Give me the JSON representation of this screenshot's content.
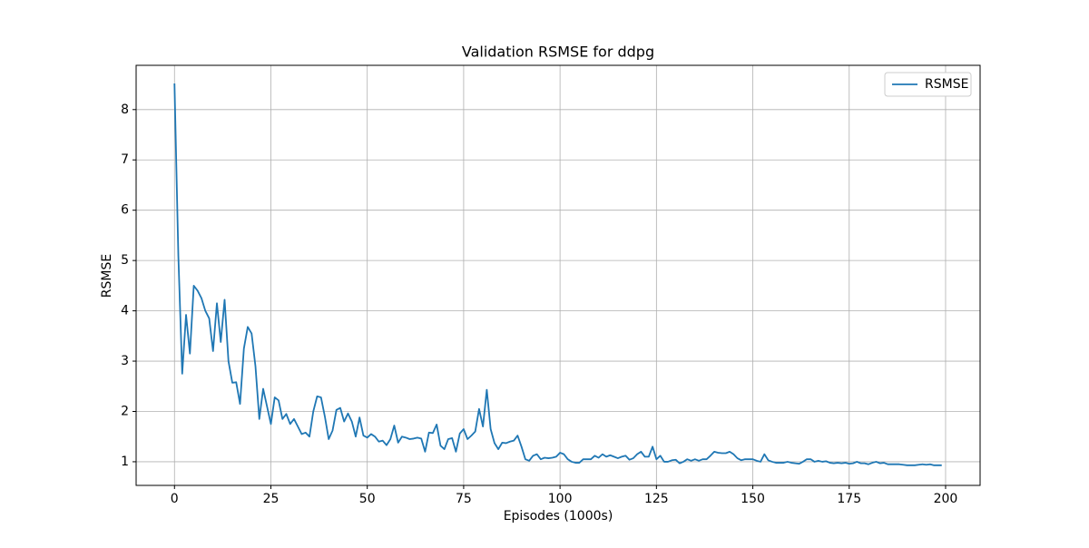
{
  "chart_data": {
    "type": "line",
    "title": "Validation RSMSE for ddpg",
    "xlabel": "Episodes (1000s)",
    "ylabel": "RSMSE",
    "x": [
      0,
      1,
      2,
      3,
      4,
      5,
      6,
      7,
      8,
      9,
      10,
      11,
      12,
      13,
      14,
      15,
      16,
      17,
      18,
      19,
      20,
      21,
      22,
      23,
      24,
      25,
      26,
      27,
      28,
      29,
      30,
      31,
      32,
      33,
      34,
      35,
      36,
      37,
      38,
      39,
      40,
      41,
      42,
      43,
      44,
      45,
      46,
      47,
      48,
      49,
      50,
      51,
      52,
      53,
      54,
      55,
      56,
      57,
      58,
      59,
      60,
      61,
      62,
      63,
      64,
      65,
      66,
      67,
      68,
      69,
      70,
      71,
      72,
      73,
      74,
      75,
      76,
      77,
      78,
      79,
      80,
      81,
      82,
      83,
      84,
      85,
      86,
      87,
      88,
      89,
      90,
      91,
      92,
      93,
      94,
      95,
      96,
      97,
      98,
      99,
      100,
      101,
      102,
      103,
      104,
      105,
      106,
      107,
      108,
      109,
      110,
      111,
      112,
      113,
      114,
      115,
      116,
      117,
      118,
      119,
      120,
      121,
      122,
      123,
      124,
      125,
      126,
      127,
      128,
      129,
      130,
      131,
      132,
      133,
      134,
      135,
      136,
      137,
      138,
      139,
      140,
      141,
      142,
      143,
      144,
      145,
      146,
      147,
      148,
      149,
      150,
      151,
      152,
      153,
      154,
      155,
      156,
      157,
      158,
      159,
      160,
      161,
      162,
      163,
      164,
      165,
      166,
      167,
      168,
      169,
      170,
      171,
      172,
      173,
      174,
      175,
      176,
      177,
      178,
      179,
      180,
      181,
      182,
      183,
      184,
      185,
      186,
      187,
      188,
      189,
      190,
      191,
      192,
      193,
      194,
      195,
      196,
      197,
      198,
      199
    ],
    "series": [
      {
        "name": "RSMSE",
        "color": "#1f77b4",
        "values": [
          8.52,
          5.1,
          2.75,
          3.92,
          3.15,
          4.5,
          4.4,
          4.25,
          4.0,
          3.85,
          3.2,
          4.15,
          3.38,
          4.22,
          3.0,
          2.57,
          2.58,
          2.15,
          3.25,
          3.68,
          3.55,
          2.9,
          1.85,
          2.45,
          2.1,
          1.75,
          2.28,
          2.22,
          1.85,
          1.95,
          1.75,
          1.85,
          1.7,
          1.55,
          1.58,
          1.5,
          2.0,
          2.3,
          2.28,
          1.9,
          1.45,
          1.62,
          2.03,
          2.07,
          1.8,
          1.96,
          1.8,
          1.5,
          1.88,
          1.52,
          1.48,
          1.55,
          1.5,
          1.4,
          1.42,
          1.33,
          1.45,
          1.72,
          1.38,
          1.5,
          1.48,
          1.45,
          1.46,
          1.48,
          1.46,
          1.2,
          1.58,
          1.57,
          1.74,
          1.32,
          1.25,
          1.45,
          1.47,
          1.2,
          1.56,
          1.65,
          1.45,
          1.52,
          1.6,
          2.05,
          1.7,
          2.43,
          1.65,
          1.37,
          1.25,
          1.38,
          1.37,
          1.4,
          1.42,
          1.52,
          1.3,
          1.05,
          1.02,
          1.12,
          1.15,
          1.05,
          1.08,
          1.07,
          1.08,
          1.1,
          1.18,
          1.15,
          1.05,
          1.0,
          0.98,
          0.98,
          1.05,
          1.05,
          1.05,
          1.12,
          1.08,
          1.15,
          1.1,
          1.13,
          1.1,
          1.07,
          1.1,
          1.12,
          1.04,
          1.07,
          1.15,
          1.2,
          1.1,
          1.1,
          1.3,
          1.05,
          1.12,
          1.0,
          1.0,
          1.03,
          1.04,
          0.97,
          1.0,
          1.05,
          1.02,
          1.05,
          1.02,
          1.05,
          1.05,
          1.12,
          1.2,
          1.18,
          1.17,
          1.17,
          1.2,
          1.15,
          1.07,
          1.03,
          1.05,
          1.05,
          1.05,
          1.02,
          1.0,
          1.15,
          1.03,
          1.0,
          0.98,
          0.98,
          0.98,
          1.0,
          0.98,
          0.97,
          0.96,
          1.0,
          1.05,
          1.05,
          1.0,
          1.02,
          1.0,
          1.01,
          0.98,
          0.97,
          0.98,
          0.97,
          0.98,
          0.96,
          0.97,
          1.0,
          0.97,
          0.97,
          0.95,
          0.98,
          1.0,
          0.97,
          0.98,
          0.95,
          0.95,
          0.95,
          0.95,
          0.94,
          0.93,
          0.93,
          0.93,
          0.94,
          0.95,
          0.94,
          0.95,
          0.93,
          0.93,
          0.93
        ]
      }
    ],
    "xlim": [
      -9.95,
      208.95
    ],
    "xticks": [
      0,
      25,
      50,
      75,
      100,
      125,
      150,
      175,
      200
    ],
    "ylim": [
      0.53,
      8.88
    ],
    "yticks": [
      1,
      2,
      3,
      4,
      5,
      6,
      7,
      8
    ],
    "grid": true,
    "legend": "upper right"
  }
}
